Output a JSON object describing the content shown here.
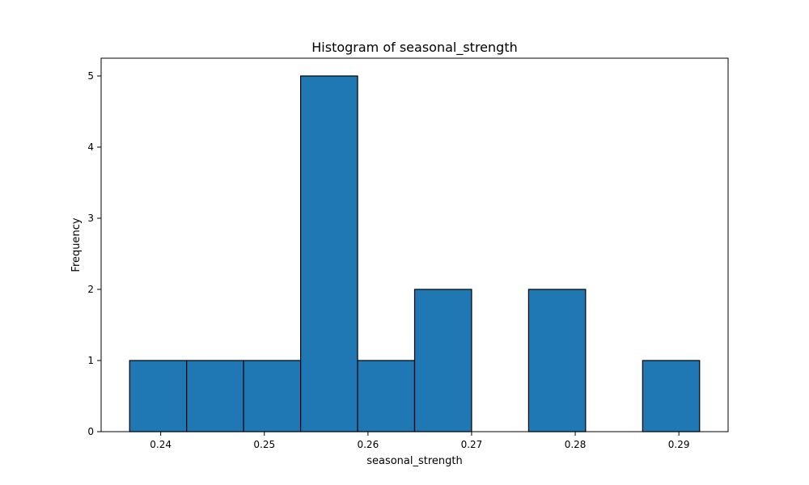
{
  "chart_data": {
    "type": "bar",
    "title": "Histogram of seasonal_strength",
    "xlabel": "seasonal_strength",
    "ylabel": "Frequency",
    "bin_edges": [
      0.237,
      0.2425,
      0.248,
      0.2535,
      0.259,
      0.2645,
      0.27,
      0.2755,
      0.281,
      0.2865,
      0.292
    ],
    "values": [
      1,
      1,
      1,
      5,
      1,
      2,
      0,
      2,
      0,
      1
    ],
    "xlim": [
      0.23425,
      0.29475
    ],
    "ylim": [
      0,
      5.25
    ],
    "xticks": [
      0.24,
      0.25,
      0.26,
      0.27,
      0.28,
      0.29
    ],
    "xtick_labels": [
      "0.24",
      "0.25",
      "0.26",
      "0.27",
      "0.28",
      "0.29"
    ],
    "yticks": [
      0,
      1,
      2,
      3,
      4,
      5
    ],
    "ytick_labels": [
      "0",
      "1",
      "2",
      "3",
      "4",
      "5"
    ],
    "bar_color": "#1f77b4",
    "edge_color": "#000000",
    "grid": false,
    "legend": "none"
  }
}
